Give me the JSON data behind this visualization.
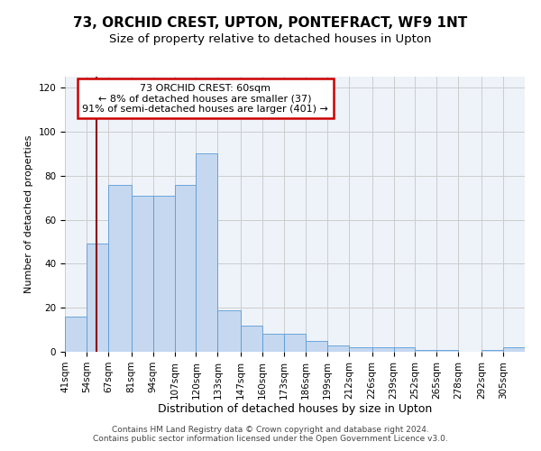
{
  "title": "73, ORCHID CREST, UPTON, PONTEFRACT, WF9 1NT",
  "subtitle": "Size of property relative to detached houses in Upton",
  "xlabel": "Distribution of detached houses by size in Upton",
  "ylabel": "Number of detached properties",
  "bin_labels": [
    "41sqm",
    "54sqm",
    "67sqm",
    "81sqm",
    "94sqm",
    "107sqm",
    "120sqm",
    "133sqm",
    "147sqm",
    "160sqm",
    "173sqm",
    "186sqm",
    "199sqm",
    "212sqm",
    "226sqm",
    "239sqm",
    "252sqm",
    "265sqm",
    "278sqm",
    "292sqm",
    "305sqm"
  ],
  "bin_edges": [
    41,
    54,
    67,
    81,
    94,
    107,
    120,
    133,
    147,
    160,
    173,
    186,
    199,
    212,
    226,
    239,
    252,
    265,
    278,
    292,
    305
  ],
  "bar_values": [
    16,
    49,
    76,
    71,
    71,
    76,
    90,
    19,
    12,
    8,
    8,
    5,
    3,
    2,
    2,
    2,
    1,
    1,
    0,
    1,
    2
  ],
  "bar_color": "#c5d8f0",
  "bar_edgecolor": "#5b9bd5",
  "property_line_x": 60,
  "property_line_color": "#8b0000",
  "annotation_box_text": "73 ORCHID CREST: 60sqm\n← 8% of detached houses are smaller (37)\n91% of semi-detached houses are larger (401) →",
  "annotation_box_edgecolor": "#cc0000",
  "annotation_box_facecolor": "#ffffff",
  "ylim": [
    0,
    125
  ],
  "yticks": [
    0,
    20,
    40,
    60,
    80,
    100,
    120
  ],
  "grid_color": "#cccccc",
  "bg_color": "#eef3fa",
  "footer_line1": "Contains HM Land Registry data © Crown copyright and database right 2024.",
  "footer_line2": "Contains public sector information licensed under the Open Government Licence v3.0.",
  "title_fontsize": 11,
  "subtitle_fontsize": 9.5,
  "xlabel_fontsize": 9,
  "ylabel_fontsize": 8,
  "tick_fontsize": 7.5,
  "footer_fontsize": 6.5
}
